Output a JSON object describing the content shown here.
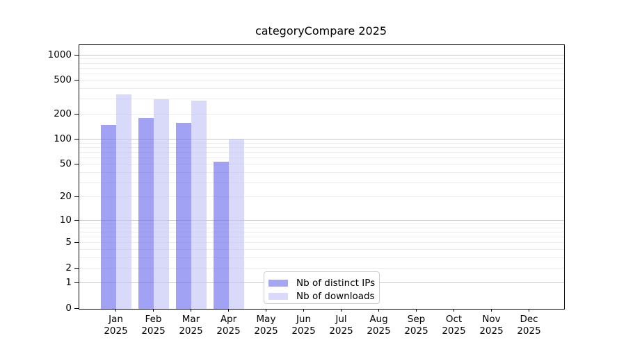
{
  "title": "categoryCompare 2025",
  "chart_data": {
    "type": "bar",
    "title": "categoryCompare 2025",
    "x_axis": {
      "categories": [
        "Jan",
        "Feb",
        "Mar",
        "Apr",
        "May",
        "Jun",
        "Jul",
        "Aug",
        "Sep",
        "Oct",
        "Nov",
        "Dec"
      ],
      "year": "2025"
    },
    "y_axis": {
      "scale": "log10(value+1)",
      "tick_labels": [
        "0",
        "1",
        "2",
        "5",
        "10",
        "20",
        "50",
        "100",
        "200",
        "500",
        "1000"
      ],
      "tick_values": [
        0,
        1,
        2,
        5,
        10,
        20,
        50,
        100,
        200,
        500,
        1000
      ],
      "major_grid_values": [
        1,
        10,
        100,
        1000
      ],
      "minor_grid_decades": [
        1,
        10,
        100
      ],
      "top_value": 1300,
      "grid": true
    },
    "series": [
      {
        "name": "Nb of distinct IPs",
        "key": "distinct-ips",
        "fill": "rgba(105,105,238,0.62)",
        "legend_color": "#a6a6f4",
        "values": [
          150,
          182,
          157,
          54,
          0,
          0,
          0,
          0,
          0,
          0,
          0,
          0
        ]
      },
      {
        "name": "Nb of downloads",
        "key": "downloads",
        "fill": "rgba(194,194,245,0.62)",
        "legend_color": "#d9d9f9",
        "values": [
          345,
          300,
          290,
          102,
          0,
          0,
          0,
          0,
          0,
          0,
          0,
          0
        ]
      }
    ],
    "legend": {
      "position": "lower-center"
    },
    "colors": {
      "major_grid": "#c6c6c6",
      "minor_grid": "#ececec",
      "spine": "#000000",
      "background": "#ffffff",
      "text": "#000000",
      "legend_border": "#cccccc"
    }
  }
}
